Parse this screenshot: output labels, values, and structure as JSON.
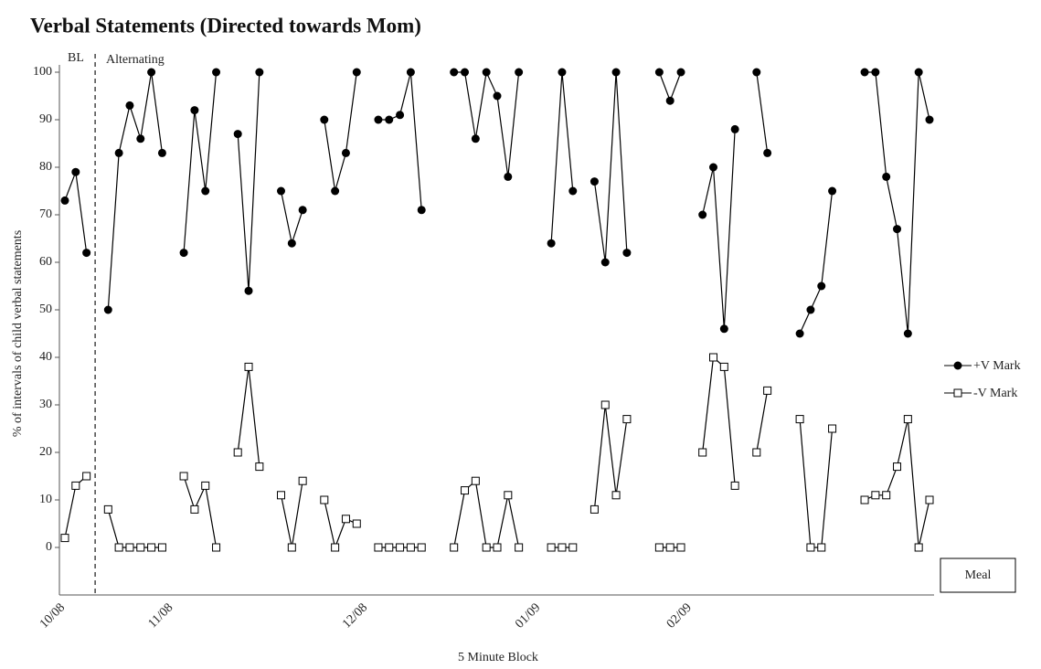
{
  "chart_data": {
    "type": "line",
    "title": "Verbal Statements (Directed towards Mom)",
    "y_label": "% of intervals of child  verbal statements",
    "x_label": "5 Minute Block",
    "annotations": [
      "BL",
      "Alternating",
      "Meal"
    ],
    "categories": [
      "10/08",
      null,
      null,
      null,
      null,
      null,
      null,
      null,
      null,
      null,
      "11/08",
      null,
      null,
      null,
      null,
      null,
      null,
      null,
      null,
      null,
      null,
      null,
      null,
      null,
      null,
      null,
      null,
      null,
      "12/08",
      null,
      null,
      null,
      null,
      null,
      null,
      null,
      null,
      null,
      null,
      null,
      null,
      null,
      null,
      null,
      "01/09",
      null,
      null,
      null,
      null,
      null,
      null,
      null,
      null,
      null,
      null,
      null,
      null,
      null,
      "02/09",
      null,
      null,
      null,
      null,
      null,
      null,
      null,
      null,
      null,
      null,
      null,
      null,
      null,
      null,
      null,
      null,
      null,
      null,
      null,
      null,
      null,
      null
    ],
    "series": [
      {
        "name": "+V Mark",
        "color": "#000000",
        "marker": "circle",
        "values": [
          73,
          79,
          62,
          null,
          50,
          83,
          93,
          86,
          100,
          83,
          null,
          62,
          92,
          75,
          100,
          null,
          87,
          54,
          100,
          null,
          75,
          64,
          71,
          null,
          90,
          75,
          83,
          100,
          null,
          90,
          90,
          91,
          100,
          71,
          null,
          null,
          100,
          100,
          86,
          100,
          95,
          78,
          100,
          null,
          null,
          64,
          100,
          75,
          null,
          77,
          60,
          100,
          62,
          null,
          null,
          100,
          94,
          100,
          null,
          70,
          80,
          46,
          88,
          null,
          100,
          83,
          null,
          null,
          45,
          50,
          55,
          75,
          null,
          null,
          100,
          100,
          78,
          67,
          45,
          100,
          90
        ]
      },
      {
        "name": "-V Mark",
        "color": "#000000",
        "marker": "square",
        "values": [
          2,
          13,
          15,
          null,
          8,
          0,
          0,
          0,
          0,
          0,
          null,
          15,
          8,
          13,
          0,
          null,
          20,
          38,
          17,
          null,
          11,
          0,
          14,
          null,
          10,
          0,
          6,
          5,
          null,
          0,
          0,
          0,
          0,
          0,
          null,
          null,
          0,
          12,
          14,
          0,
          0,
          11,
          0,
          null,
          null,
          0,
          0,
          0,
          null,
          8,
          30,
          11,
          27,
          null,
          null,
          0,
          0,
          0,
          null,
          20,
          40,
          38,
          13,
          null,
          20,
          33,
          null,
          null,
          27,
          0,
          0,
          25,
          null,
          null,
          10,
          11,
          11,
          17,
          27,
          0,
          10
        ]
      }
    ],
    "ylim": [
      -10,
      100
    ],
    "yticks": [
      0,
      10,
      20,
      30,
      40,
      50,
      60,
      70,
      80,
      90,
      100
    ],
    "grid": false,
    "legend": "right"
  }
}
